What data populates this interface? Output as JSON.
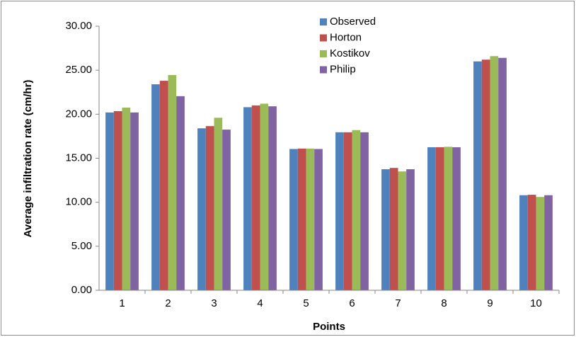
{
  "chart_data": {
    "type": "bar",
    "y_label": "Average infiltration rate (cm/hr)",
    "x_label": "Points",
    "categories": [
      "1",
      "2",
      "3",
      "4",
      "5",
      "6",
      "7",
      "8",
      "9",
      "10"
    ],
    "series": [
      {
        "name": "Observed",
        "color": "#4f81bd",
        "values": [
          20.2,
          23.4,
          18.4,
          20.8,
          16.05,
          17.95,
          13.75,
          16.25,
          26.0,
          10.8
        ]
      },
      {
        "name": "Horton",
        "color": "#c0504d",
        "values": [
          20.35,
          23.8,
          18.65,
          21.0,
          16.1,
          17.95,
          13.9,
          16.25,
          26.2,
          10.85
        ]
      },
      {
        "name": "Kostikov",
        "color": "#9bbb59",
        "values": [
          20.75,
          24.45,
          19.6,
          21.2,
          16.1,
          18.2,
          13.5,
          16.3,
          26.6,
          10.6
        ]
      },
      {
        "name": "Philip",
        "color": "#8064a2",
        "values": [
          20.2,
          22.05,
          18.25,
          20.9,
          16.05,
          17.95,
          13.75,
          16.25,
          26.4,
          10.8
        ]
      }
    ],
    "ylim": [
      0,
      30
    ],
    "yticks": [
      {
        "value": 0,
        "label": "0.00"
      },
      {
        "value": 5,
        "label": "5.00"
      },
      {
        "value": 10,
        "label": "10.00"
      },
      {
        "value": 15,
        "label": "15.00"
      },
      {
        "value": 20,
        "label": "20.00"
      },
      {
        "value": 25,
        "label": "25.00"
      },
      {
        "value": 30,
        "label": "30.00"
      }
    ],
    "legend": "top"
  }
}
